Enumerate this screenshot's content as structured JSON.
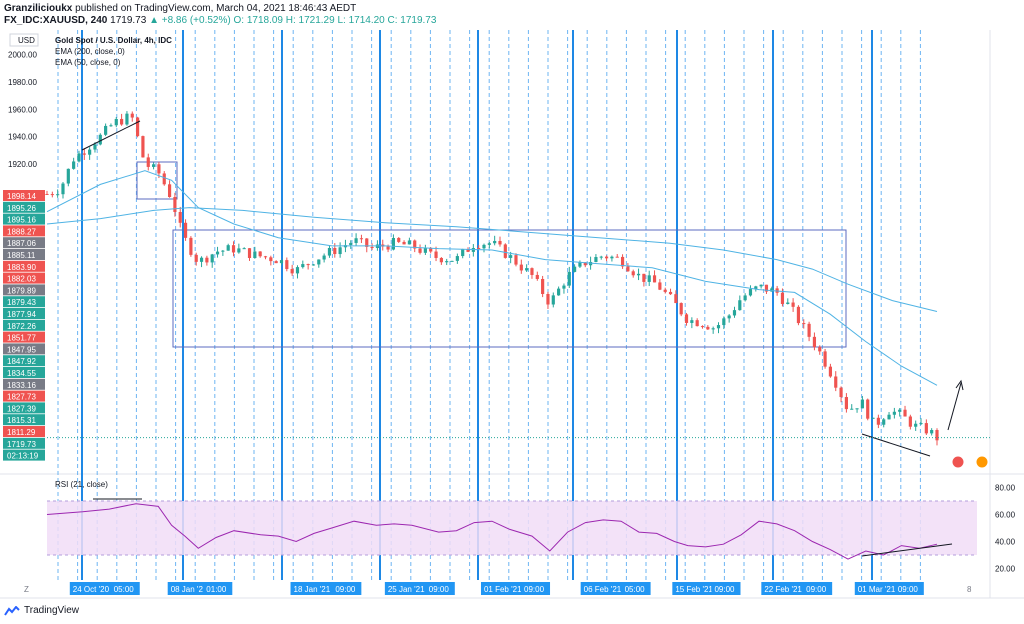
{
  "header": {
    "author": "Granzilicioukx",
    "published_text": "published on TradingView.com, March 04, 2021 18:46:43 AEDT",
    "symbol": "FX_IDC:XAUUSD, 240",
    "last": "1719.73",
    "change": "▲ +8.86 (+0.52%)",
    "ohlc": "O: 1718.09  H: 1721.29  L: 1714.20  C: 1719.73"
  },
  "legend": {
    "title": "Gold Spot / U.S. Dollar, 4h, IDC",
    "ema200": "EMA (200, close, 0)",
    "ema50": "EMA (50, close, 0)",
    "rsi": "RSI (21, close)",
    "currency": "USD"
  },
  "price_axis": {
    "ticks": [
      "2000.00",
      "1980.00",
      "1960.00",
      "1940.00",
      "1920.00"
    ],
    "labels": [
      {
        "text": "1898.14",
        "color": "#ef5350"
      },
      {
        "text": "1895.26",
        "color": "#26a69a"
      },
      {
        "text": "1895.16",
        "color": "#26a69a"
      },
      {
        "text": "1888.27",
        "color": "#ef5350"
      },
      {
        "text": "1887.06",
        "color": "#787b86"
      },
      {
        "text": "1885.11",
        "color": "#787b86"
      },
      {
        "text": "1883.90",
        "color": "#ef5350"
      },
      {
        "text": "1882.03",
        "color": "#ef5350"
      },
      {
        "text": "1879.89",
        "color": "#787b86"
      },
      {
        "text": "1879.43",
        "color": "#26a69a"
      },
      {
        "text": "1877.94",
        "color": "#26a69a"
      },
      {
        "text": "1872.26",
        "color": "#26a69a"
      },
      {
        "text": "1851.77",
        "color": "#ef5350"
      },
      {
        "text": "1847.95",
        "color": "#787b86"
      },
      {
        "text": "1847.92",
        "color": "#26a69a"
      },
      {
        "text": "1834.55",
        "color": "#26a69a"
      },
      {
        "text": "1833.16",
        "color": "#787b86"
      },
      {
        "text": "1827.73",
        "color": "#ef5350"
      },
      {
        "text": "1827.39",
        "color": "#26a69a"
      },
      {
        "text": "1815.31",
        "color": "#26a69a"
      },
      {
        "text": "1811.29",
        "color": "#ef5350"
      },
      {
        "text": "1719.73",
        "color": "#26a69a"
      },
      {
        "text": "02:13:19",
        "color": "#26a69a"
      }
    ]
  },
  "rsi_axis": {
    "ticks": [
      "80.00",
      "60.00",
      "40.00",
      "20.00"
    ]
  },
  "time_axis": {
    "labels": [
      {
        "text": "24 Oct '20",
        "frac": 0.02
      },
      {
        "text": "05:00",
        "frac": 0.066
      },
      {
        "text": "08 Jan '21",
        "frac": 0.13
      },
      {
        "text": "01:00",
        "frac": 0.17
      },
      {
        "text": "18 Jan '21",
        "frac": 0.268
      },
      {
        "text": "09:00",
        "frac": 0.315
      },
      {
        "text": "25 Jan '21",
        "frac": 0.374
      },
      {
        "text": "09:00",
        "frac": 0.42
      },
      {
        "text": "01 Feb '21",
        "frac": 0.482
      },
      {
        "text": "09:00",
        "frac": 0.527
      },
      {
        "text": "06 Feb '21",
        "frac": 0.594
      },
      {
        "text": "05:00",
        "frac": 0.64
      },
      {
        "text": "15 Feb '21",
        "frac": 0.697
      },
      {
        "text": "09:00",
        "frac": 0.741
      },
      {
        "text": "22 Feb '21",
        "frac": 0.797
      },
      {
        "text": "09:00",
        "frac": 0.844
      },
      {
        "text": "01 Mar '21",
        "frac": 0.902
      },
      {
        "text": "09:00",
        "frac": 0.947
      }
    ],
    "z_label": "Z",
    "right_label": "8"
  },
  "footer": {
    "brand": "TradingView"
  },
  "chart_data": {
    "type": "candlestick",
    "title": "Gold Spot / U.S. Dollar, 4h, IDC",
    "ylim": [
      1696,
      2018
    ],
    "rsi_ylim": [
      13,
      87
    ],
    "rsi_band": [
      30,
      70
    ],
    "close_path": [
      [
        0.0,
        1898
      ],
      [
        0.015,
        1902
      ],
      [
        0.03,
        1924
      ],
      [
        0.045,
        1932
      ],
      [
        0.06,
        1940
      ],
      [
        0.075,
        1950
      ],
      [
        0.095,
        1955
      ],
      [
        0.11,
        1920
      ],
      [
        0.125,
        1914
      ],
      [
        0.14,
        1895
      ],
      [
        0.152,
        1868
      ],
      [
        0.17,
        1848
      ],
      [
        0.19,
        1856
      ],
      [
        0.21,
        1858
      ],
      [
        0.235,
        1853
      ],
      [
        0.26,
        1850
      ],
      [
        0.28,
        1842
      ],
      [
        0.3,
        1850
      ],
      [
        0.32,
        1856
      ],
      [
        0.345,
        1864
      ],
      [
        0.365,
        1858
      ],
      [
        0.39,
        1862
      ],
      [
        0.41,
        1860
      ],
      [
        0.435,
        1852
      ],
      [
        0.46,
        1850
      ],
      [
        0.48,
        1862
      ],
      [
        0.5,
        1862
      ],
      [
        0.52,
        1852
      ],
      [
        0.545,
        1838
      ],
      [
        0.565,
        1818
      ],
      [
        0.585,
        1838
      ],
      [
        0.605,
        1848
      ],
      [
        0.625,
        1853
      ],
      [
        0.645,
        1850
      ],
      [
        0.665,
        1838
      ],
      [
        0.685,
        1832
      ],
      [
        0.705,
        1818
      ],
      [
        0.72,
        1806
      ],
      [
        0.735,
        1804
      ],
      [
        0.75,
        1800
      ],
      [
        0.765,
        1808
      ],
      [
        0.78,
        1822
      ],
      [
        0.8,
        1830
      ],
      [
        0.82,
        1826
      ],
      [
        0.835,
        1815
      ],
      [
        0.85,
        1800
      ],
      [
        0.865,
        1786
      ],
      [
        0.885,
        1762
      ],
      [
        0.9,
        1740
      ],
      [
        0.915,
        1746
      ],
      [
        0.93,
        1728
      ],
      [
        0.945,
        1740
      ],
      [
        0.96,
        1736
      ],
      [
        0.975,
        1728
      ],
      [
        0.99,
        1725
      ],
      [
        1.0,
        1719.73
      ]
    ],
    "ema50": [
      [
        0.0,
        1885
      ],
      [
        0.06,
        1905
      ],
      [
        0.11,
        1915
      ],
      [
        0.14,
        1908
      ],
      [
        0.17,
        1888
      ],
      [
        0.21,
        1876
      ],
      [
        0.26,
        1866
      ],
      [
        0.32,
        1860
      ],
      [
        0.38,
        1860
      ],
      [
        0.44,
        1858
      ],
      [
        0.5,
        1857
      ],
      [
        0.56,
        1850
      ],
      [
        0.62,
        1847
      ],
      [
        0.68,
        1844
      ],
      [
        0.74,
        1834
      ],
      [
        0.8,
        1828
      ],
      [
        0.84,
        1826
      ],
      [
        0.88,
        1810
      ],
      [
        0.92,
        1790
      ],
      [
        0.96,
        1772
      ],
      [
        1.0,
        1758
      ]
    ],
    "ema200": [
      [
        0.0,
        1876
      ],
      [
        0.06,
        1880
      ],
      [
        0.12,
        1886
      ],
      [
        0.16,
        1888
      ],
      [
        0.22,
        1886
      ],
      [
        0.3,
        1881
      ],
      [
        0.38,
        1877
      ],
      [
        0.46,
        1874
      ],
      [
        0.54,
        1870
      ],
      [
        0.62,
        1866
      ],
      [
        0.7,
        1862
      ],
      [
        0.76,
        1857
      ],
      [
        0.82,
        1850
      ],
      [
        0.86,
        1843
      ],
      [
        0.9,
        1832
      ],
      [
        0.95,
        1820
      ],
      [
        1.0,
        1812
      ]
    ],
    "rsi": [
      [
        0.0,
        60
      ],
      [
        0.04,
        62
      ],
      [
        0.07,
        64
      ],
      [
        0.1,
        68
      ],
      [
        0.125,
        66
      ],
      [
        0.14,
        52
      ],
      [
        0.155,
        44
      ],
      [
        0.17,
        35
      ],
      [
        0.19,
        43
      ],
      [
        0.21,
        48
      ],
      [
        0.24,
        45
      ],
      [
        0.26,
        44
      ],
      [
        0.28,
        40
      ],
      [
        0.3,
        46
      ],
      [
        0.32,
        50
      ],
      [
        0.345,
        55
      ],
      [
        0.37,
        52
      ],
      [
        0.39,
        53
      ],
      [
        0.41,
        52
      ],
      [
        0.44,
        47
      ],
      [
        0.46,
        48
      ],
      [
        0.48,
        54
      ],
      [
        0.5,
        55
      ],
      [
        0.52,
        49
      ],
      [
        0.545,
        44
      ],
      [
        0.565,
        33
      ],
      [
        0.585,
        47
      ],
      [
        0.605,
        54
      ],
      [
        0.625,
        56
      ],
      [
        0.645,
        55
      ],
      [
        0.665,
        47
      ],
      [
        0.685,
        46
      ],
      [
        0.705,
        40
      ],
      [
        0.72,
        37
      ],
      [
        0.74,
        36
      ],
      [
        0.76,
        38
      ],
      [
        0.78,
        45
      ],
      [
        0.8,
        55
      ],
      [
        0.82,
        53
      ],
      [
        0.84,
        48
      ],
      [
        0.86,
        40
      ],
      [
        0.88,
        34
      ],
      [
        0.9,
        27
      ],
      [
        0.92,
        33
      ],
      [
        0.94,
        30
      ],
      [
        0.96,
        37
      ],
      [
        0.98,
        35
      ],
      [
        1.0,
        38
      ]
    ]
  },
  "colors": {
    "up": "#26a69a",
    "down": "#ef5350",
    "ema": "#4fb3e4",
    "rsi": "#9c27b0",
    "rsi_band": "#f1ddf7",
    "vline": "#1e88e5",
    "box": "#5b6bc0"
  }
}
